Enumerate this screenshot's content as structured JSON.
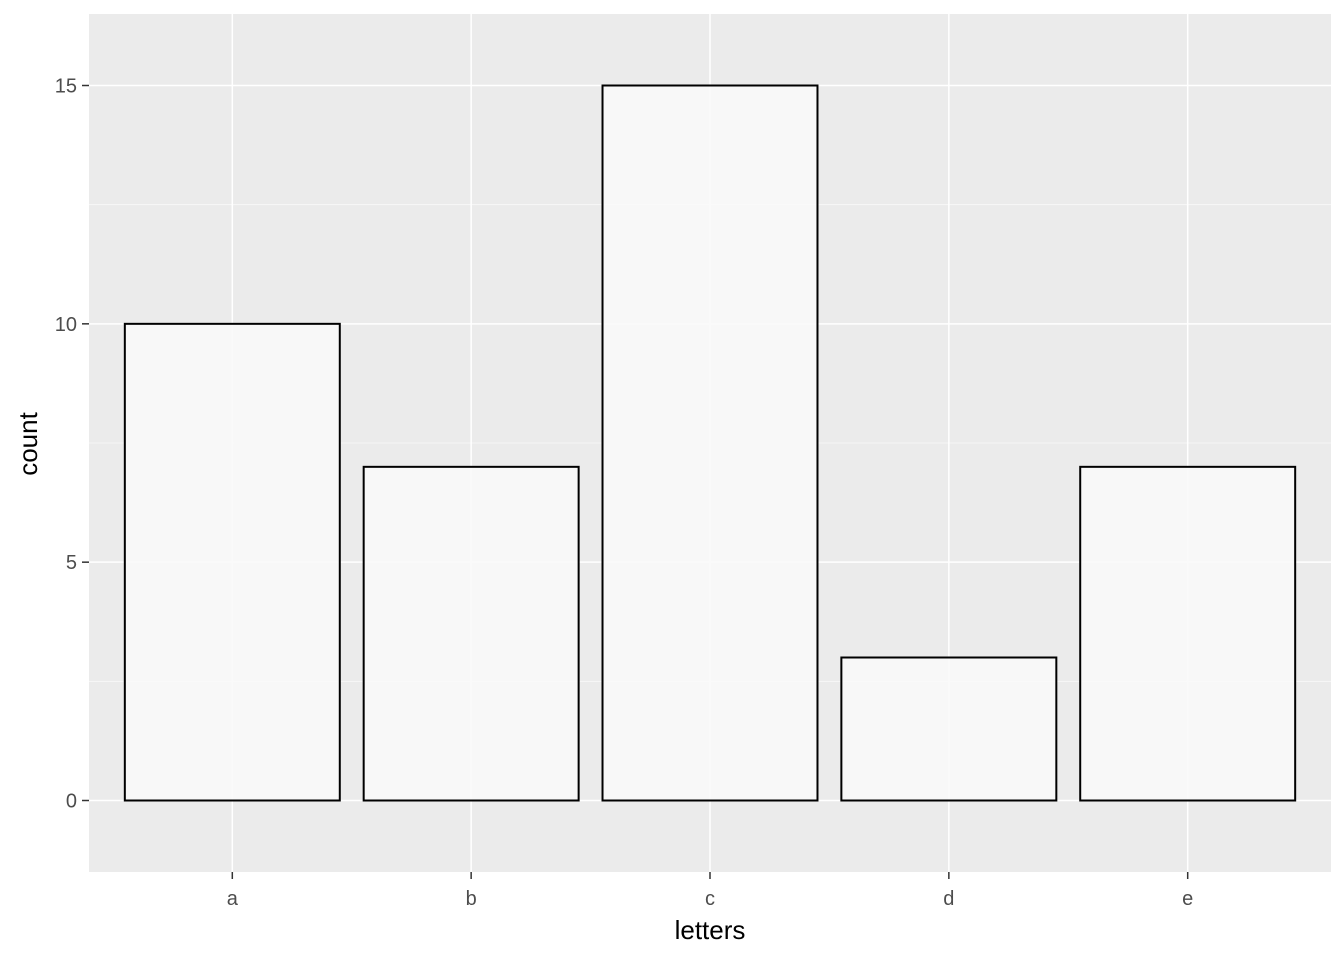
{
  "chart_data": {
    "type": "bar",
    "title": "",
    "xlabel": "letters",
    "ylabel": "count",
    "categories": [
      "a",
      "b",
      "c",
      "d",
      "e"
    ],
    "values": [
      10,
      7,
      15,
      3,
      7
    ],
    "ylim": [
      -1.5,
      16.5
    ],
    "yticks": [
      0,
      5,
      10,
      15
    ],
    "grid": true,
    "colors": {
      "panel_background": "#EBEBEB",
      "grid_major": "#FFFFFF",
      "bar_fill": "#FAFAFA",
      "bar_stroke": "#000000",
      "tick_text": "#4D4D4D",
      "axis_title": "#000000"
    }
  }
}
